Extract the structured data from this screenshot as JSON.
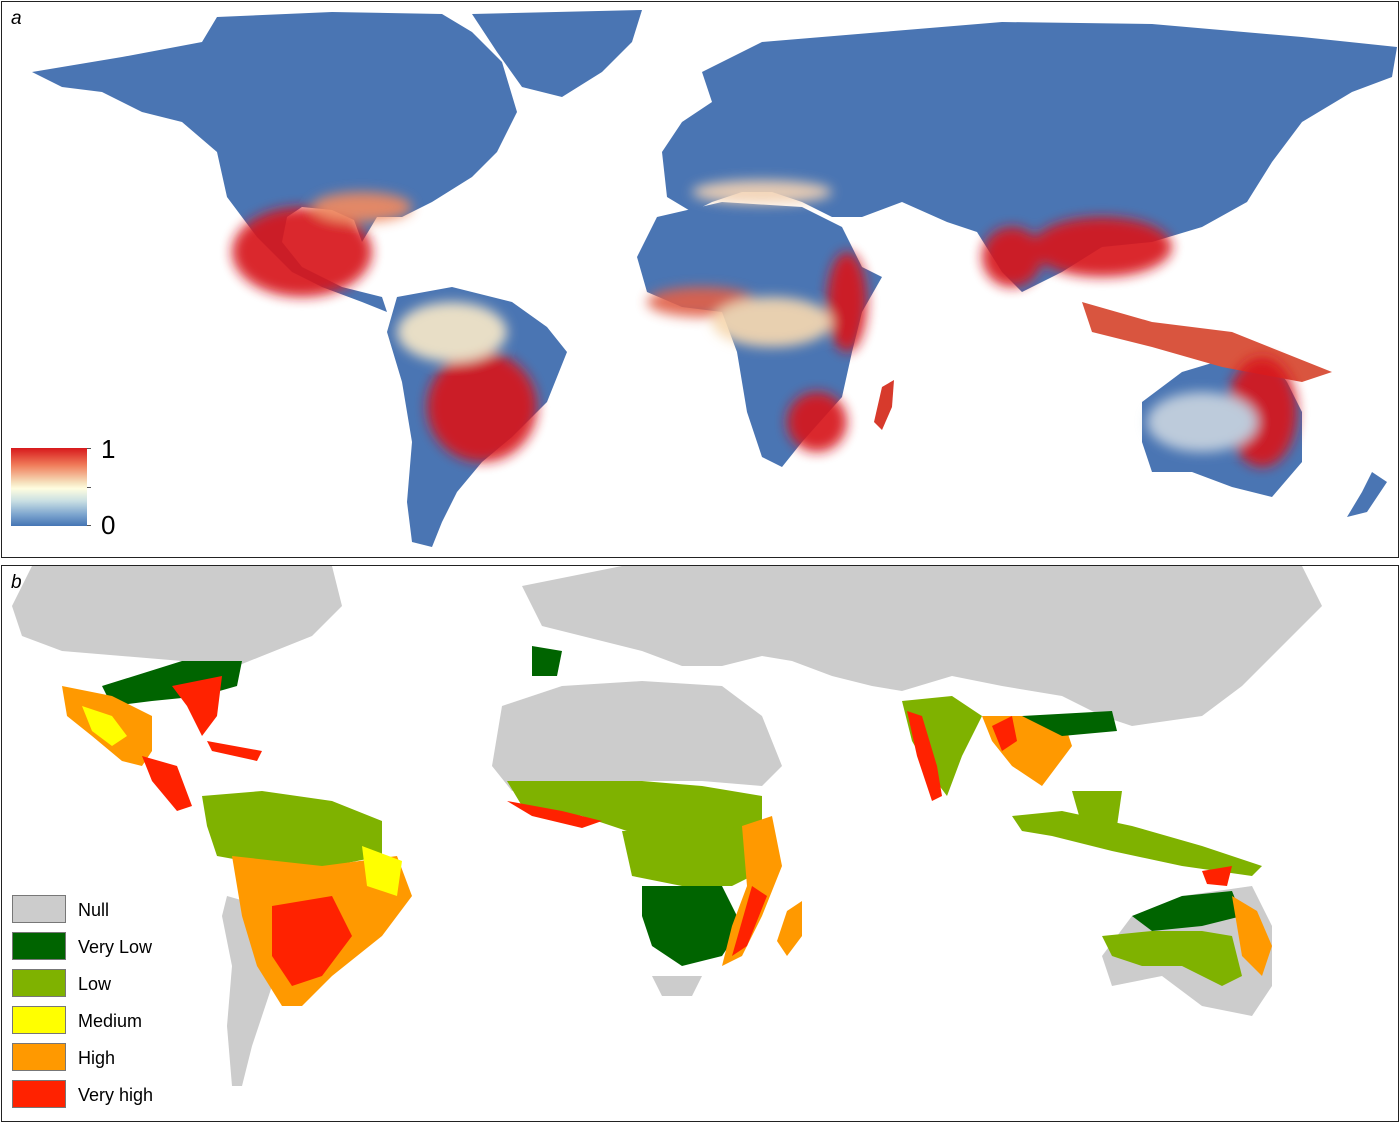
{
  "panel_a": {
    "letter": "a",
    "colorbar": {
      "max_label": "1",
      "min_label": "0",
      "colors": [
        "#d7191c",
        "#fffde0",
        "#4575b4"
      ]
    }
  },
  "panel_b": {
    "letter": "b",
    "legend": [
      {
        "label": "Null",
        "color": "#cccccc"
      },
      {
        "label": "Very Low",
        "color": "#006400"
      },
      {
        "label": "Low",
        "color": "#7fb200"
      },
      {
        "label": "Medium",
        "color": "#ffff00"
      },
      {
        "label": "High",
        "color": "#ff9900"
      },
      {
        "label": "Very high",
        "color": "#ff2200"
      }
    ]
  },
  "palette": {
    "low": "#4575b4",
    "mid": "#fffde0",
    "high": "#d7191c",
    "ocean": "#ffffff"
  }
}
